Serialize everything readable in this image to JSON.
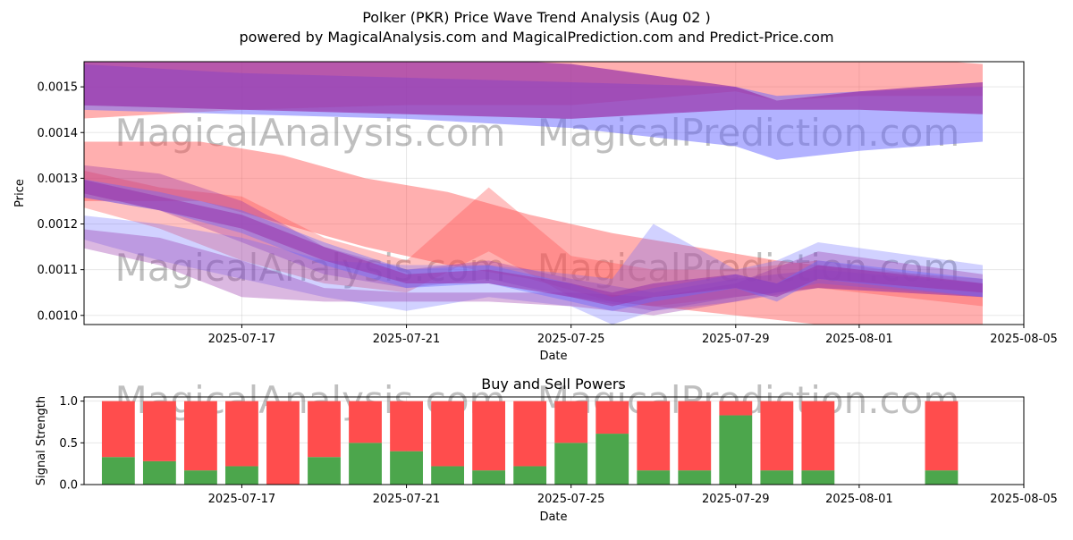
{
  "title": "Polker (PKR) Price Wave Trend Analysis (Aug 02 )",
  "subtitle": "powered by MagicalAnalysis.com and MagicalPrediction.com and Predict-Price.com",
  "watermarks": [
    "MagicalAnalysis.com",
    "MagicalPrediction.com"
  ],
  "chart_data": [
    {
      "type": "area",
      "xlabel": "Date",
      "ylabel": "Price",
      "xlim": [
        "2025-07-13T04:00",
        "2025-08-05"
      ],
      "ylim": [
        0.00098,
        0.001555
      ],
      "x_ticks": [
        "2025-07-17",
        "2025-07-21",
        "2025-07-25",
        "2025-07-29",
        "2025-08-01",
        "2025-08-05"
      ],
      "y_ticks": [
        0.001,
        0.0011,
        0.0012,
        0.0013,
        0.0014,
        0.0015
      ],
      "y_tick_labels": [
        "0.0010",
        "0.0011",
        "0.0012",
        "0.0013",
        "0.0014",
        "0.0015"
      ],
      "grid": true,
      "colors": {
        "red": "#ff4d4d",
        "blue": "#6666ff",
        "purple": "#9933aa"
      },
      "series": [
        {
          "color": "red",
          "opacity": 0.45,
          "x": [
            "2025-07-13",
            "2025-07-17",
            "2025-07-21",
            "2025-07-25",
            "2025-07-29",
            "2025-07-30",
            "2025-08-01",
            "2025-08-04"
          ],
          "upper": [
            0.00159,
            0.00159,
            0.00159,
            0.00159,
            0.00158,
            0.00157,
            0.00157,
            0.00155
          ],
          "lower": [
            0.00143,
            0.00145,
            0.00146,
            0.00146,
            0.00149,
            0.00147,
            0.00148,
            0.00148
          ]
        },
        {
          "color": "blue",
          "opacity": 0.5,
          "x": [
            "2025-07-13",
            "2025-07-17",
            "2025-07-21",
            "2025-07-25",
            "2025-07-29",
            "2025-07-30",
            "2025-08-01",
            "2025-08-04"
          ],
          "upper": [
            0.00155,
            0.00153,
            0.00152,
            0.00151,
            0.0015,
            0.00148,
            0.00149,
            0.0015
          ],
          "lower": [
            0.00145,
            0.00144,
            0.00143,
            0.00141,
            0.00137,
            0.00134,
            0.00136,
            0.00138
          ]
        },
        {
          "color": "purple",
          "opacity": 0.7,
          "x": [
            "2025-07-13",
            "2025-07-17",
            "2025-07-21",
            "2025-07-25",
            "2025-07-29",
            "2025-07-30",
            "2025-08-01",
            "2025-08-04"
          ],
          "upper": [
            0.00156,
            0.00158,
            0.00157,
            0.00155,
            0.0015,
            0.00147,
            0.00149,
            0.00151
          ],
          "lower": [
            0.00146,
            0.00145,
            0.00144,
            0.00143,
            0.00145,
            0.00145,
            0.00145,
            0.00144
          ]
        },
        {
          "color": "red",
          "opacity": 0.45,
          "x": [
            "2025-07-13",
            "2025-07-16",
            "2025-07-18",
            "2025-07-20",
            "2025-07-22",
            "2025-07-24",
            "2025-07-26",
            "2025-07-28",
            "2025-07-30",
            "2025-08-01",
            "2025-08-04"
          ],
          "upper": [
            0.00138,
            0.00138,
            0.00135,
            0.0013,
            0.00127,
            0.00122,
            0.00118,
            0.00115,
            0.00112,
            0.0011,
            0.00108
          ],
          "lower": [
            0.00125,
            0.00125,
            0.0012,
            0.00115,
            0.00111,
            0.00108,
            0.00103,
            0.00101,
            0.00099,
            0.00097,
            0.00096
          ]
        },
        {
          "color": "red",
          "opacity": 0.35,
          "x": [
            "2025-07-13",
            "2025-07-15",
            "2025-07-17",
            "2025-07-19",
            "2025-07-21",
            "2025-07-23",
            "2025-07-25",
            "2025-07-27",
            "2025-07-29",
            "2025-07-31",
            "2025-08-04"
          ],
          "upper": [
            0.00132,
            0.00128,
            0.00126,
            0.00117,
            0.00112,
            0.00128,
            0.00113,
            0.0011,
            0.0011,
            0.00112,
            0.00107
          ],
          "lower": [
            0.00124,
            0.00119,
            0.00112,
            0.00107,
            0.00105,
            0.00114,
            0.00104,
            0.00102,
            0.00104,
            0.00106,
            0.00102
          ]
        },
        {
          "color": "purple",
          "opacity": 0.35,
          "x": [
            "2025-07-13",
            "2025-07-15",
            "2025-07-17",
            "2025-07-19",
            "2025-07-21",
            "2025-07-23",
            "2025-07-25",
            "2025-07-27",
            "2025-07-29",
            "2025-07-31",
            "2025-08-04"
          ],
          "upper": [
            0.00133,
            0.00131,
            0.00125,
            0.00115,
            0.0011,
            0.00112,
            0.00108,
            0.00105,
            0.00108,
            0.0011,
            0.00107
          ],
          "lower": [
            0.00126,
            0.00123,
            0.00116,
            0.00109,
            0.00106,
            0.00108,
            0.00104,
            0.00101,
            0.00104,
            0.00106,
            0.00104
          ]
        },
        {
          "color": "blue",
          "opacity": 0.3,
          "x": [
            "2025-07-13",
            "2025-07-15",
            "2025-07-17",
            "2025-07-19",
            "2025-07-21",
            "2025-07-23",
            "2025-07-25",
            "2025-07-26",
            "2025-07-27",
            "2025-07-29",
            "2025-07-30",
            "2025-07-31",
            "2025-08-04"
          ],
          "upper": [
            0.00122,
            0.0012,
            0.00117,
            0.00112,
            0.00111,
            0.00111,
            0.00109,
            0.00108,
            0.0012,
            0.0011,
            0.00112,
            0.00116,
            0.00111
          ],
          "lower": [
            0.00117,
            0.00112,
            0.00108,
            0.00104,
            0.00101,
            0.00104,
            0.00102,
            0.00098,
            0.00101,
            0.00103,
            0.00105,
            0.00107,
            0.00104
          ]
        },
        {
          "color": "purple",
          "opacity": 0.35,
          "x": [
            "2025-07-13",
            "2025-07-15",
            "2025-07-17",
            "2025-07-19",
            "2025-07-21",
            "2025-07-23",
            "2025-07-25",
            "2025-07-27",
            "2025-07-29",
            "2025-07-31",
            "2025-08-04"
          ],
          "upper": [
            0.00119,
            0.00117,
            0.00112,
            0.00106,
            0.00105,
            0.00105,
            0.00105,
            0.00104,
            0.00107,
            0.00114,
            0.00109
          ],
          "lower": [
            0.00115,
            0.00111,
            0.00104,
            0.00103,
            0.00103,
            0.00103,
            0.00102,
            0.001,
            0.00103,
            0.00106,
            0.00104
          ]
        },
        {
          "color": "blue",
          "opacity": 0.4,
          "x": [
            "2025-07-13",
            "2025-07-15",
            "2025-07-17",
            "2025-07-19",
            "2025-07-21",
            "2025-07-23",
            "2025-07-25",
            "2025-07-26",
            "2025-07-27",
            "2025-07-29",
            "2025-07-30",
            "2025-07-31",
            "2025-08-04"
          ],
          "upper": [
            0.0013,
            0.00127,
            0.00123,
            0.00116,
            0.0011,
            0.00111,
            0.00107,
            0.00104,
            0.00106,
            0.00109,
            0.00107,
            0.00112,
            0.00108
          ],
          "lower": [
            0.00126,
            0.00123,
            0.00118,
            0.00111,
            0.00106,
            0.00107,
            0.00103,
            0.00101,
            0.00103,
            0.00106,
            0.00103,
            0.00108,
            0.00104
          ]
        },
        {
          "color": "purple",
          "opacity": 0.55,
          "x": [
            "2025-07-13",
            "2025-07-15",
            "2025-07-17",
            "2025-07-19",
            "2025-07-21",
            "2025-07-23",
            "2025-07-25",
            "2025-07-26",
            "2025-07-27",
            "2025-07-29",
            "2025-07-30",
            "2025-07-31",
            "2025-08-04"
          ],
          "upper": [
            0.0013,
            0.00126,
            0.00122,
            0.00115,
            0.00109,
            0.0011,
            0.00107,
            0.00105,
            0.00107,
            0.00109,
            0.00107,
            0.00111,
            0.00107
          ],
          "lower": [
            0.00127,
            0.00123,
            0.00119,
            0.00112,
            0.00107,
            0.00107,
            0.00104,
            0.00102,
            0.00104,
            0.00106,
            0.00104,
            0.00108,
            0.00105
          ]
        }
      ]
    },
    {
      "type": "bar",
      "title": "Buy and Sell Powers",
      "xlabel": "Date",
      "ylabel": "Signal Strength",
      "xlim": [
        "2025-07-13T04:00",
        "2025-08-05"
      ],
      "ylim": [
        0,
        1.05
      ],
      "x_ticks": [
        "2025-07-17",
        "2025-07-21",
        "2025-07-25",
        "2025-07-29",
        "2025-08-01",
        "2025-08-05"
      ],
      "y_ticks": [
        0.0,
        0.5,
        1.0
      ],
      "y_tick_labels": [
        "0.0",
        "0.5",
        "1.0"
      ],
      "grid": true,
      "colors": {
        "buy": "#4ca64c",
        "sell": "#ff4d4d"
      },
      "categories": [
        "2025-07-14",
        "2025-07-15",
        "2025-07-16",
        "2025-07-17",
        "2025-07-18",
        "2025-07-19",
        "2025-07-20",
        "2025-07-21",
        "2025-07-22",
        "2025-07-23",
        "2025-07-24",
        "2025-07-25",
        "2025-07-26",
        "2025-07-27",
        "2025-07-28",
        "2025-07-29",
        "2025-07-30",
        "2025-07-31",
        "2025-08-03"
      ],
      "series": [
        {
          "key": "buy",
          "values": [
            0.33,
            0.28,
            0.17,
            0.22,
            0.0,
            0.33,
            0.5,
            0.4,
            0.22,
            0.17,
            0.22,
            0.5,
            0.61,
            0.17,
            0.17,
            0.83,
            0.17,
            0.17,
            0.17
          ]
        },
        {
          "key": "sell",
          "values": [
            0.67,
            0.72,
            0.83,
            0.78,
            1.0,
            0.67,
            0.5,
            0.6,
            0.78,
            0.83,
            0.78,
            0.5,
            0.39,
            0.83,
            0.83,
            0.17,
            0.83,
            0.83,
            0.83
          ]
        }
      ]
    }
  ]
}
